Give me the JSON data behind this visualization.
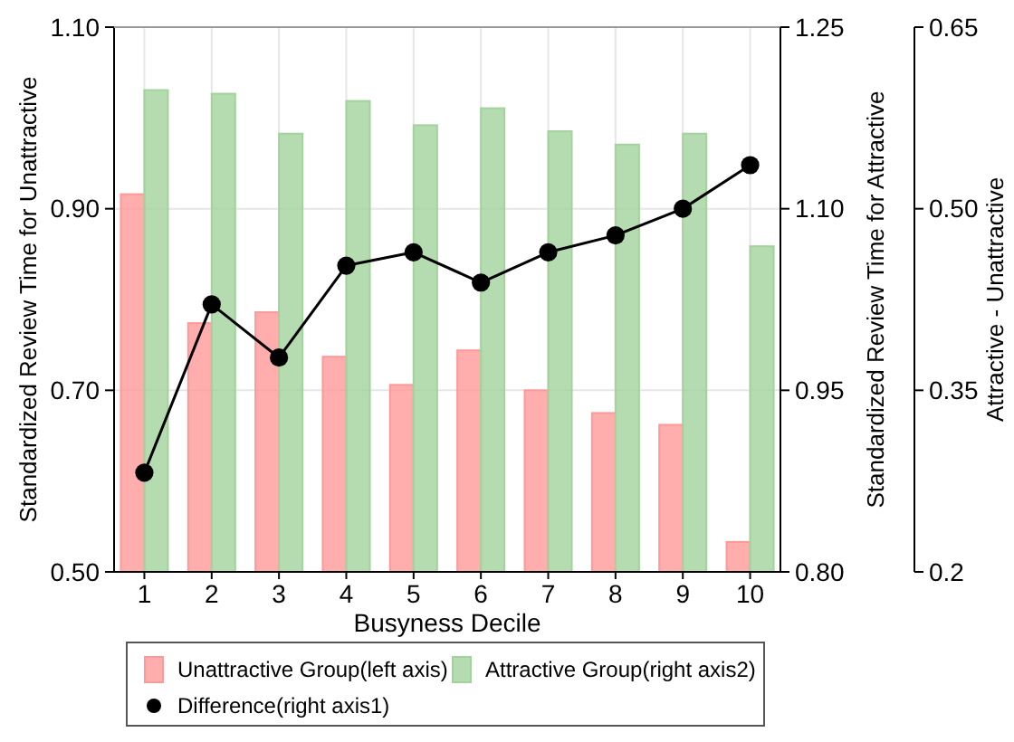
{
  "chart_data": {
    "type": "bar",
    "xlabel": "Busyness Decile",
    "ylabel": "Standardized Review Time for Unattractive",
    "y2label": "Standardized Review Time for Attractive",
    "y3label": "Attractive - Unattractive",
    "categories": [
      "1",
      "2",
      "3",
      "4",
      "5",
      "6",
      "7",
      "8",
      "9",
      "10"
    ],
    "series": [
      {
        "name": "Unattractive Group(left axis)",
        "color": "#ff9999",
        "values": [
          0.916,
          0.774,
          0.786,
          0.737,
          0.706,
          0.744,
          0.7,
          0.675,
          0.662,
          0.533
        ]
      },
      {
        "name": "Attractive Group(right axis2)",
        "axis": "y2",
        "color": "#a3d39c",
        "values": [
          1.198,
          1.195,
          1.162,
          1.189,
          1.169,
          1.183,
          1.164,
          1.153,
          1.162,
          1.069
        ]
      },
      {
        "name": "Difference(right axis1)",
        "type": "line",
        "axis": "y3",
        "color": "#000000",
        "marker": "circle",
        "values": [
          0.282,
          0.421,
          0.377,
          0.453,
          0.464,
          0.439,
          0.464,
          0.478,
          0.5,
          0.536
        ]
      }
    ],
    "ylim": [
      0.5,
      1.1
    ],
    "yticks": [
      {
        "value": 0.5,
        "label": "0.50"
      },
      {
        "value": 0.7,
        "label": "0.70"
      },
      {
        "value": 0.9,
        "label": "0.90"
      },
      {
        "value": 1.1,
        "label": "1.10"
      }
    ],
    "y2lim": [
      0.8,
      1.25
    ],
    "y2ticks": [
      {
        "value": 0.8,
        "label": "0.80"
      },
      {
        "value": 0.95,
        "label": "0.95"
      },
      {
        "value": 1.1,
        "label": "1.10"
      },
      {
        "value": 1.25,
        "label": "1.25"
      }
    ],
    "y3lim": [
      0.2,
      0.65
    ],
    "y3ticks": [
      0.2,
      0.35,
      {
        "value": 0.5,
        "label": "0.50"
      },
      0.65
    ],
    "grid": true,
    "legend": "bottom"
  }
}
